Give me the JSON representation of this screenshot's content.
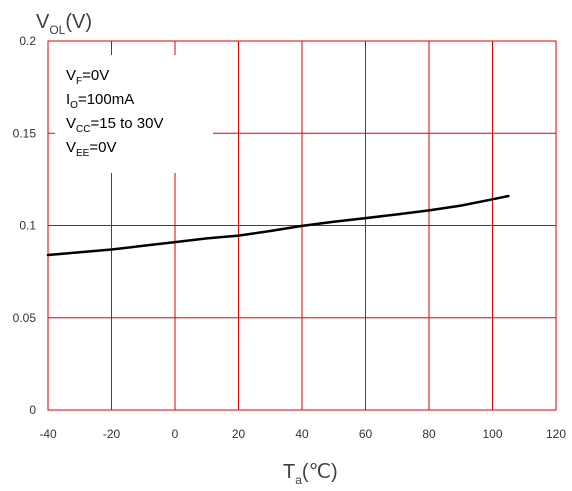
{
  "chart_data": {
    "type": "line",
    "ylabel": {
      "main": "V",
      "sub": "OL",
      "unit": "(V)"
    },
    "xlabel": {
      "main": "T",
      "sub": "a",
      "unit": "(℃)"
    },
    "xlim": [
      -40,
      120
    ],
    "ylim": [
      0,
      0.2
    ],
    "x_ticks": [
      -40,
      -20,
      0,
      20,
      40,
      60,
      80,
      100,
      120
    ],
    "x_tick_labels": [
      "-40",
      "-20",
      "0",
      "20",
      "40",
      "60",
      "80",
      "100",
      "120"
    ],
    "y_ticks": [
      0,
      0.05,
      0.1,
      0.15,
      0.2
    ],
    "y_tick_labels": [
      "0",
      "0.05",
      "0.1",
      "0.15",
      "0.2"
    ],
    "grid": true,
    "grid_color": "#e00000",
    "line_color": "#000000",
    "series": [
      {
        "x": [
          -40,
          -30,
          -20,
          -10,
          0,
          10,
          20,
          30,
          40,
          50,
          60,
          70,
          80,
          90,
          100,
          105
        ],
        "y": [
          0.084,
          0.0855,
          0.087,
          0.089,
          0.091,
          0.093,
          0.0945,
          0.097,
          0.0998,
          0.102,
          0.104,
          0.106,
          0.1082,
          0.1108,
          0.1142,
          0.116
        ]
      }
    ],
    "annotation": {
      "lines": [
        {
          "main": "V",
          "sub": "F",
          "rest": "=0V"
        },
        {
          "main": "I",
          "sub": "O",
          "rest": "=100mA"
        },
        {
          "main": "V",
          "sub": "CC",
          "rest": "=15 to 30V"
        },
        {
          "main": "V",
          "sub": "EE",
          "rest": "=0V"
        }
      ]
    }
  }
}
